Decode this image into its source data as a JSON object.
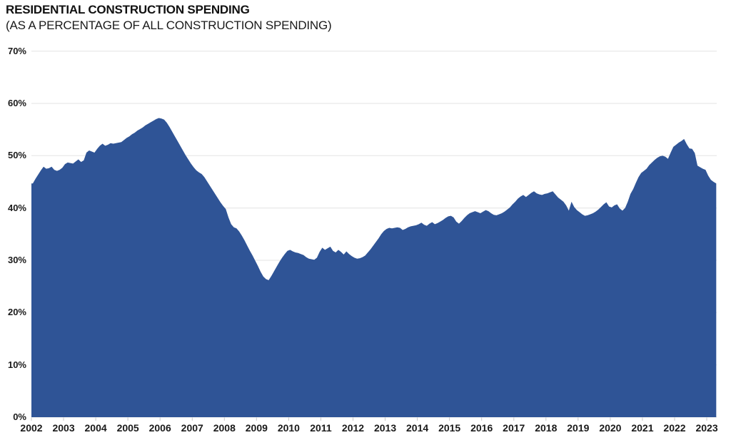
{
  "header": {
    "title": "RESIDENTIAL CONSTRUCTION SPENDING",
    "subtitle": "(AS A PERCENTAGE OF ALL CONSTRUCTION SPENDING)"
  },
  "colors": {
    "area_fill": "#2F5496",
    "gridline": "#E3E3E3",
    "tick_mark": "#C9C9C9",
    "axis_text": "#1A1A1A"
  },
  "chart_data": {
    "type": "area",
    "title": "RESIDENTIAL CONSTRUCTION SPENDING",
    "subtitle": "(AS A PERCENTAGE OF ALL CONSTRUCTION SPENDING)",
    "xlabel": "",
    "ylabel": "",
    "ylim": [
      0,
      70
    ],
    "y_unit": "%",
    "grid": "horizontal",
    "legend": "none",
    "y_tick_labels": [
      "0%",
      "10%",
      "20%",
      "30%",
      "40%",
      "50%",
      "60%",
      "70%"
    ],
    "x_tick_labels": [
      "2002",
      "2003",
      "2004",
      "2005",
      "2006",
      "2007",
      "2008",
      "2009",
      "2010",
      "2011",
      "2012",
      "2013",
      "2014",
      "2015",
      "2016",
      "2017",
      "2018",
      "2019",
      "2020",
      "2021",
      "2022",
      "2023"
    ],
    "x_monthly": {
      "start": "2002-01",
      "end": "2023-04"
    },
    "values_monthly_pct": [
      44.7,
      45.6,
      46.4,
      47.2,
      47.9,
      47.5,
      47.6,
      47.9,
      47.3,
      47.1,
      47.3,
      47.7,
      48.4,
      48.7,
      48.6,
      48.5,
      48.9,
      49.3,
      48.8,
      49.1,
      50.6,
      51.0,
      50.8,
      50.6,
      51.3,
      51.9,
      52.3,
      51.9,
      52.1,
      52.4,
      52.3,
      52.4,
      52.5,
      52.6,
      53.0,
      53.4,
      53.7,
      54.1,
      54.4,
      54.8,
      55.1,
      55.4,
      55.8,
      56.1,
      56.4,
      56.7,
      57.0,
      57.2,
      57.1,
      56.9,
      56.3,
      55.5,
      54.6,
      53.7,
      52.8,
      51.9,
      51.0,
      50.1,
      49.3,
      48.5,
      47.8,
      47.2,
      46.8,
      46.5,
      45.9,
      45.1,
      44.3,
      43.5,
      42.7,
      41.9,
      41.1,
      40.4,
      39.8,
      38.2,
      36.9,
      36.3,
      36.1,
      35.5,
      34.7,
      33.8,
      32.8,
      31.8,
      30.9,
      29.9,
      28.9,
      27.8,
      26.9,
      26.4,
      26.2,
      27.0,
      27.9,
      28.8,
      29.7,
      30.5,
      31.2,
      31.8,
      32.0,
      31.7,
      31.5,
      31.4,
      31.2,
      31.0,
      30.6,
      30.3,
      30.2,
      30.1,
      30.5,
      31.6,
      32.4,
      32.0,
      32.3,
      32.6,
      31.8,
      31.5,
      32.0,
      31.6,
      31.1,
      31.7,
      31.2,
      30.8,
      30.5,
      30.3,
      30.4,
      30.6,
      30.9,
      31.5,
      32.1,
      32.8,
      33.5,
      34.2,
      35.0,
      35.6,
      36.0,
      36.2,
      36.1,
      36.2,
      36.3,
      36.2,
      35.8,
      36.0,
      36.3,
      36.5,
      36.6,
      36.7,
      36.9,
      37.2,
      36.8,
      36.6,
      37.0,
      37.3,
      36.9,
      37.1,
      37.4,
      37.7,
      38.1,
      38.4,
      38.5,
      38.2,
      37.4,
      37.0,
      37.5,
      38.1,
      38.6,
      39.0,
      39.2,
      39.4,
      39.2,
      39.0,
      39.3,
      39.6,
      39.4,
      39.0,
      38.7,
      38.6,
      38.8,
      39.0,
      39.3,
      39.7,
      40.1,
      40.7,
      41.2,
      41.8,
      42.2,
      42.5,
      42.1,
      42.5,
      42.9,
      43.2,
      42.8,
      42.6,
      42.5,
      42.7,
      42.8,
      43.0,
      43.2,
      42.6,
      42.0,
      41.6,
      41.2,
      40.5,
      39.5,
      41.2,
      40.2,
      39.6,
      39.2,
      38.8,
      38.5,
      38.6,
      38.8,
      39.0,
      39.3,
      39.7,
      40.2,
      40.7,
      41.1,
      40.3,
      40.1,
      40.5,
      40.7,
      39.9,
      39.5,
      40.0,
      41.2,
      42.7,
      43.6,
      44.8,
      45.9,
      46.7,
      47.1,
      47.5,
      48.2,
      48.7,
      49.2,
      49.6,
      49.9,
      50.0,
      49.8,
      49.4,
      50.6,
      51.7,
      52.1,
      52.5,
      52.8,
      53.2,
      52.2,
      51.4,
      51.3,
      50.5,
      48.1,
      47.8,
      47.5,
      47.3,
      46.2,
      45.4,
      45.0,
      44.7
    ]
  }
}
